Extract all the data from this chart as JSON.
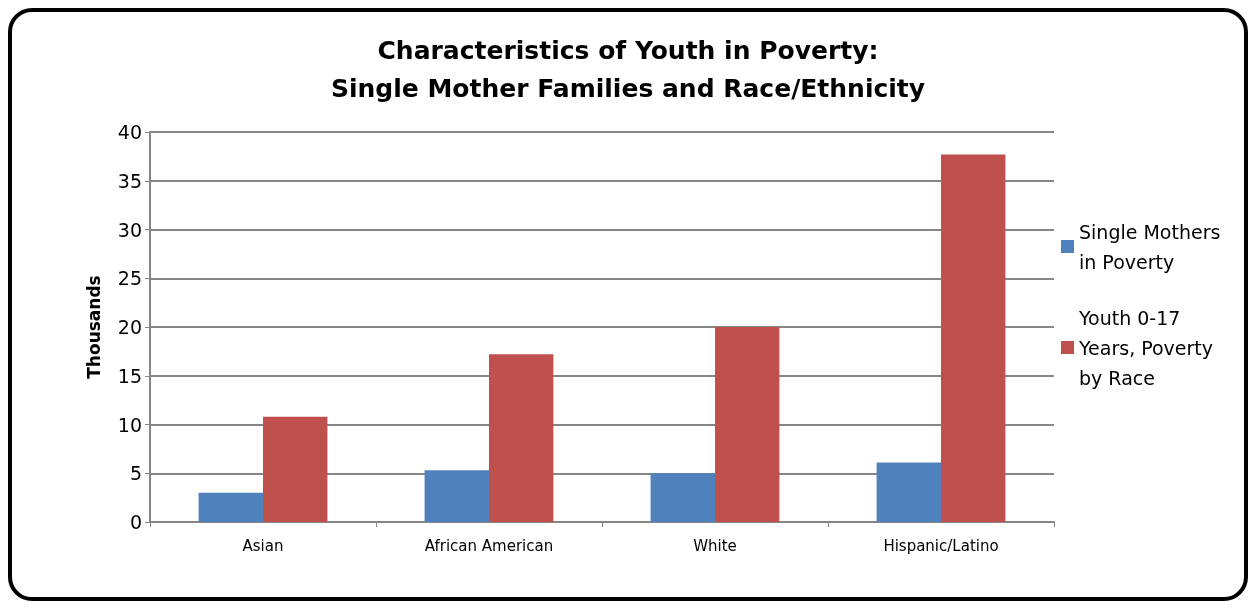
{
  "chart_data": {
    "type": "bar",
    "title": "Characteristics of Youth in Poverty:\nSingle Mother Families and Race/Ethnicity",
    "ylabel": "Thousands",
    "categories": [
      "Asian",
      "African American",
      "White",
      "Hispanic/Latino"
    ],
    "series": [
      {
        "name": "Single Mothers in Poverty",
        "color": "#4f81bd",
        "values": [
          3.0,
          5.3,
          5.0,
          6.1
        ]
      },
      {
        "name": "Youth 0-17 Years, Poverty by Race",
        "color": "#c0504d",
        "values": [
          10.8,
          17.2,
          20.0,
          37.7
        ]
      }
    ],
    "ylim": [
      0,
      40
    ],
    "yticks": [
      0,
      5,
      10,
      15,
      20,
      25,
      30,
      35,
      40
    ],
    "grid": "y",
    "legend": "right"
  }
}
